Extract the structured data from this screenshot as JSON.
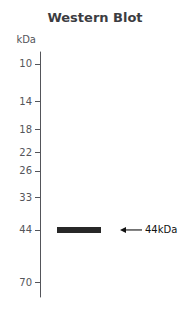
{
  "chart_data": {
    "type": "scatter",
    "title": "Western Blot",
    "ylabel": "kDa",
    "categories": [
      null
    ],
    "values": [
      44
    ],
    "color": "#111111",
    "marker": "rect",
    "log": "y",
    "ylim": [
      9,
      80
    ],
    "yticks": [
      70,
      44,
      33,
      26,
      22,
      18,
      14,
      10
    ],
    "grid": false,
    "tick_labels": "y",
    "annotations": [
      {
        "text": "44kDa",
        "y": 44
      }
    ]
  }
}
